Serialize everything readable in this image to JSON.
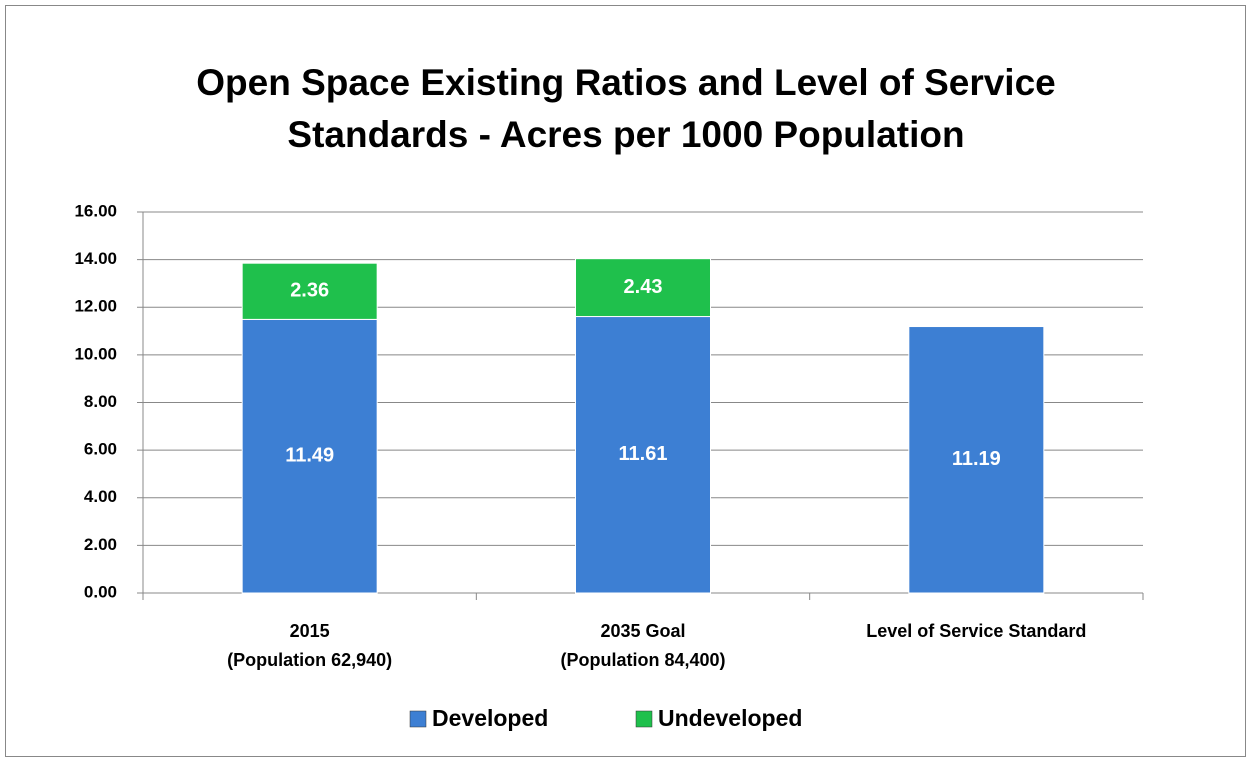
{
  "chart_data": {
    "type": "stacked_bar",
    "title": [
      "Open Space Existing Ratios and Level of Service",
      "Standards - Acres per 1000 Population"
    ],
    "categories": [
      [
        "2015",
        "(Population 62,940)"
      ],
      [
        "2035 Goal",
        "(Population 84,400)"
      ],
      [
        "Level of Service Standard"
      ]
    ],
    "series": [
      {
        "name": "Developed",
        "color": "#3d7fd3",
        "values": [
          11.49,
          11.61,
          11.19
        ]
      },
      {
        "name": "Undeveloped",
        "color": "#1fc04c",
        "values": [
          2.36,
          2.43,
          null
        ]
      }
    ],
    "ylim": [
      0,
      16
    ],
    "yticks": [
      {
        "value": 0,
        "label": "0.00"
      },
      {
        "value": 2,
        "label": "2.00"
      },
      {
        "value": 4,
        "label": "4.00"
      },
      {
        "value": 6,
        "label": "6.00"
      },
      {
        "value": 8,
        "label": "8.00"
      },
      {
        "value": 10,
        "label": "10.00"
      },
      {
        "value": 12,
        "label": "12.00"
      },
      {
        "value": 14,
        "label": "14.00"
      },
      {
        "value": 16,
        "label": "16.00"
      }
    ],
    "grid": true,
    "legend": "bottom"
  }
}
